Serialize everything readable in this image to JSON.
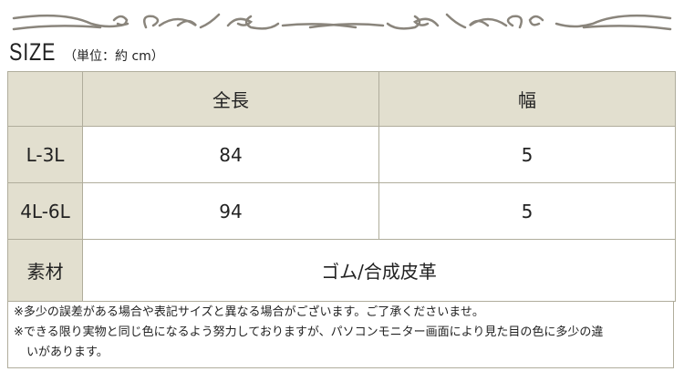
{
  "title": "SIZE",
  "unit": "（単位：約 cm）",
  "table": {
    "headers": [
      "",
      "全長",
      "幅"
    ],
    "rows": [
      {
        "label": "L-3L",
        "length": "84",
        "width": "5"
      },
      {
        "label": "4L-6L",
        "length": "94",
        "width": "5"
      }
    ],
    "material": {
      "label": "素材",
      "value": "ゴム/合成皮革"
    }
  },
  "notes": [
    "※多少の誤差がある場合や表記サイズと異なる場合がございます。ご了承くださいませ。",
    "※できる限り実物と同じ色になるよう努力しておりますが、パソコンモニター画面により見た目の色に多少の違",
    "いがあります。"
  ],
  "colors": {
    "header_bg": "#e2dfcf",
    "border": "#b0ad9c",
    "ornament": "#8a857c"
  }
}
